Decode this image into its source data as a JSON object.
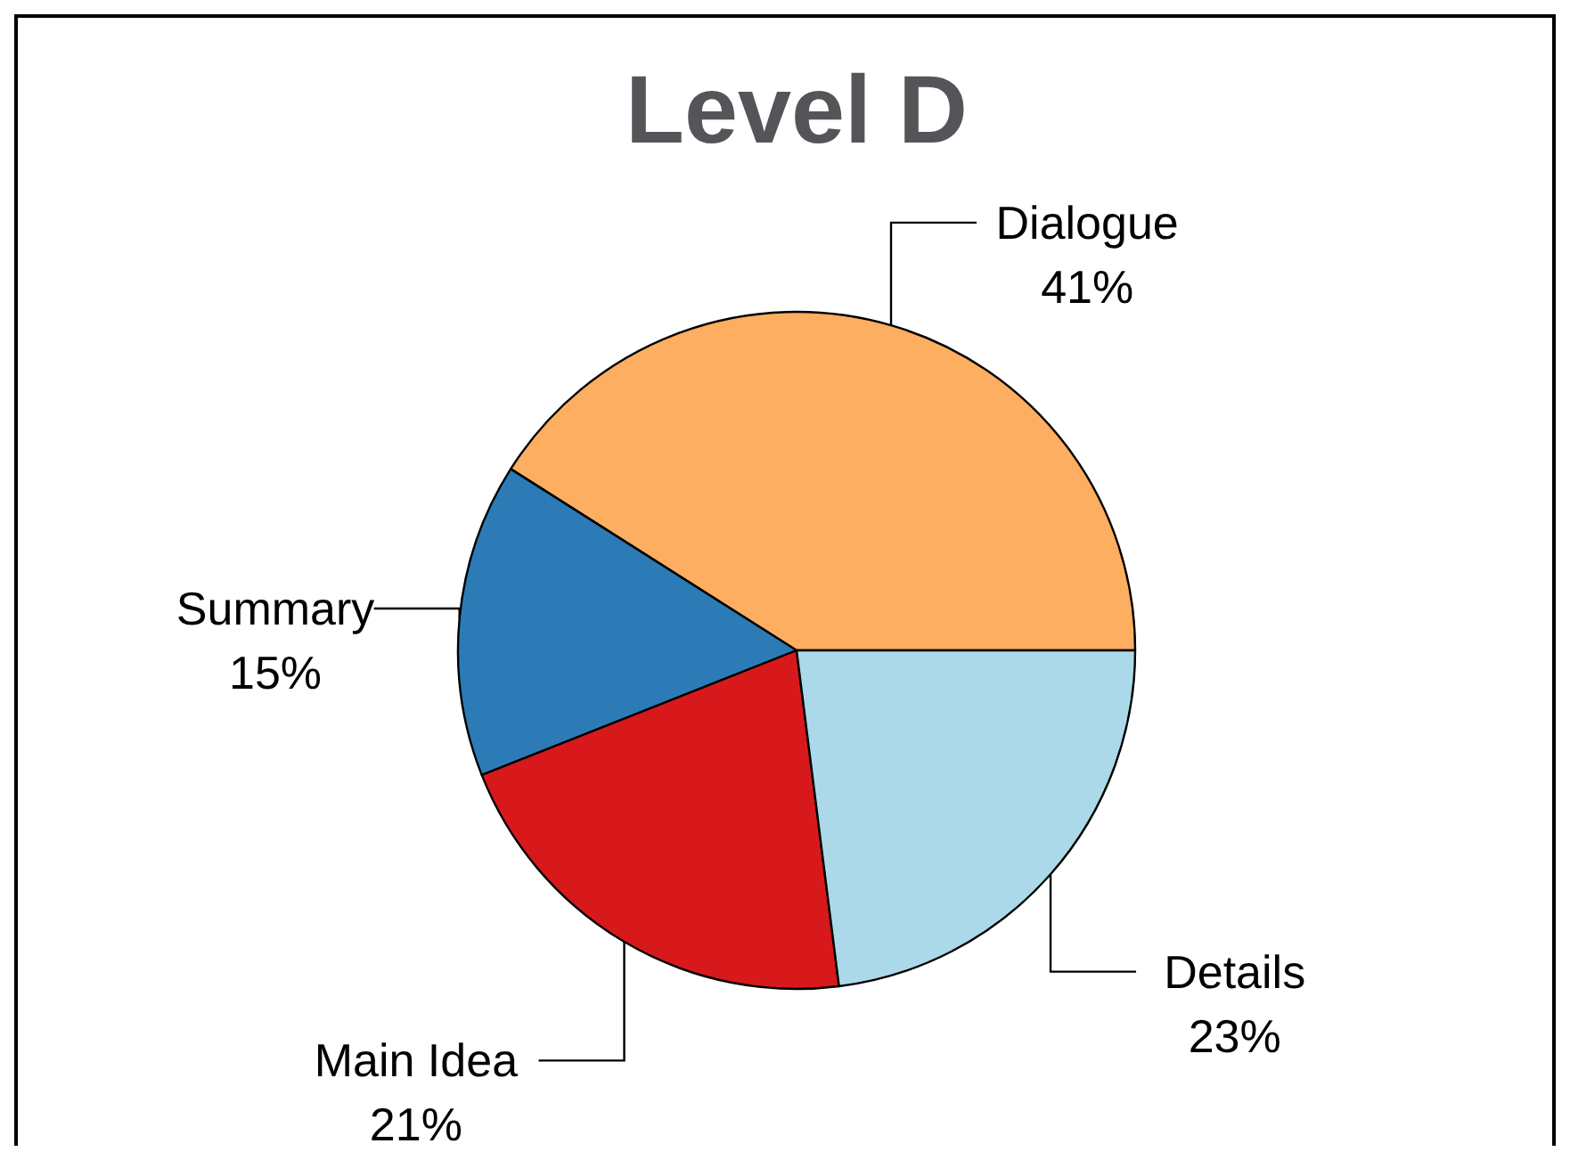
{
  "chart_data": {
    "type": "pie",
    "title": "Level D",
    "categories": [
      "Dialogue",
      "Summary",
      "Main Idea",
      "Details"
    ],
    "values": [
      41,
      15,
      21,
      23
    ],
    "value_labels": [
      "41%",
      "15%",
      "21%",
      "23%"
    ],
    "colors": [
      "#fdae61",
      "#2c7bb6",
      "#d7191c",
      "#abd9e9"
    ]
  }
}
